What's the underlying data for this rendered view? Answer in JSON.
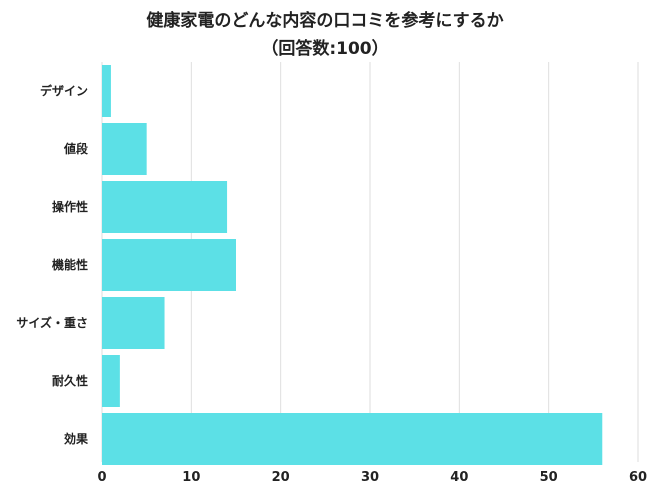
{
  "chart_data": {
    "type": "bar",
    "orientation": "horizontal",
    "title": "健康家電のどんな内容の口コミを参考にするか",
    "subtitle": "（回答数:100）",
    "categories": [
      "デザイン",
      "値段",
      "操作性",
      "機能性",
      "サイズ・重さ",
      "耐久性",
      "効果"
    ],
    "values": [
      1,
      5,
      14,
      15,
      7,
      2,
      56
    ],
    "xlim": [
      0,
      60
    ],
    "xticks": [
      "0",
      "10",
      "20",
      "30",
      "40",
      "50",
      "60"
    ],
    "grid": true,
    "bar_color": "#5ce0e6"
  }
}
